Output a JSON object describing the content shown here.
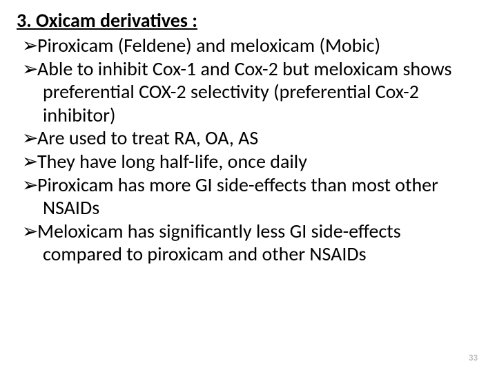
{
  "heading": "3. Oxicam derivatives :",
  "bullet_glyph": "➢",
  "items": [
    "Piroxicam (Feldene) and meloxicam (Mobic)",
    "Able to inhibit Cox-1 and Cox-2 but meloxicam shows preferential COX-2 selectivity (preferential Cox-2 inhibitor)",
    "Are used to treat RA, OA, AS",
    "They have long half-life, once daily",
    "Piroxicam has more GI side-effects than most other NSAIDs",
    "Meloxicam has significantly less GI side-effects compared to piroxicam and other NSAIDs"
  ],
  "page_number": "33",
  "colors": {
    "text": "#000000",
    "background": "#ffffff",
    "page_num": "#bfbfbf"
  },
  "typography": {
    "heading_fontsize_pt": 21,
    "body_fontsize_pt": 21,
    "page_num_fontsize_pt": 10,
    "heading_weight": 700,
    "body_weight": 400
  }
}
